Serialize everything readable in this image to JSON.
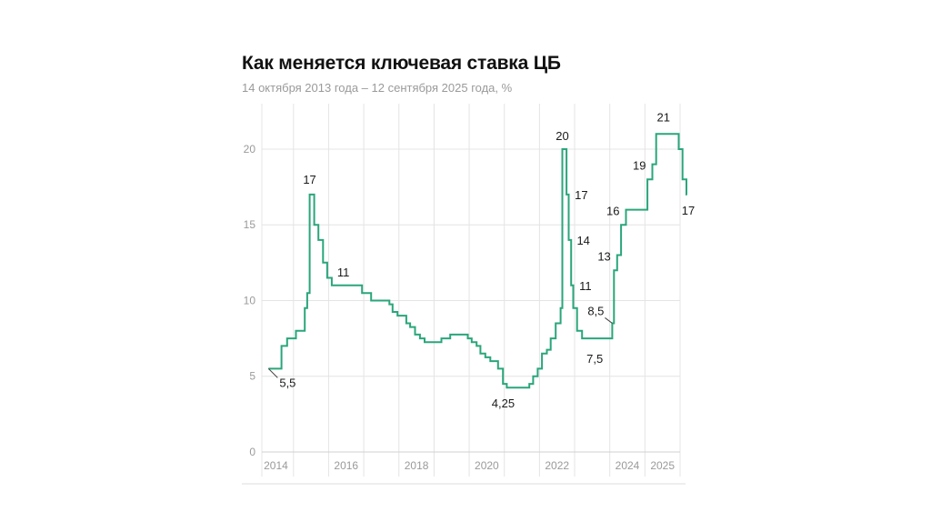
{
  "chart_data": {
    "type": "line",
    "title": "Как меняется ключевая ставка ЦБ",
    "subtitle": "14 октября 2013 года – 12 сентября 2025 года, %",
    "ylim": [
      0,
      23
    ],
    "yticks": [
      0,
      5,
      10,
      15,
      20
    ],
    "ytick_labels": [
      "0",
      "5",
      "10",
      "15",
      "20"
    ],
    "xlim": [
      2013.6,
      2025.5
    ],
    "xticks": [
      {
        "value": 2014,
        "label": "2014"
      },
      {
        "value": 2016,
        "label": "2016"
      },
      {
        "value": 2018,
        "label": "2018"
      },
      {
        "value": 2020,
        "label": "2020"
      },
      {
        "value": 2022,
        "label": "2022"
      },
      {
        "value": 2024,
        "label": "2024"
      },
      {
        "value": 2025,
        "label": "2025"
      }
    ],
    "gridlines": [
      2013.6,
      2014.5,
      2015.5,
      2016.5,
      2017.5,
      2018.5,
      2019.5,
      2020.5,
      2021.5,
      2022.5,
      2023.5,
      2024.5,
      2025.5
    ],
    "grid": true,
    "series": [
      {
        "color": "#2aa67a",
        "points": [
          [
            2013.79,
            5.5
          ],
          [
            2014.16,
            7.0
          ],
          [
            2014.32,
            7.5
          ],
          [
            2014.57,
            8.0
          ],
          [
            2014.82,
            9.5
          ],
          [
            2014.89,
            10.5
          ],
          [
            2014.96,
            17.0
          ],
          [
            2015.09,
            15.0
          ],
          [
            2015.21,
            14.0
          ],
          [
            2015.34,
            12.5
          ],
          [
            2015.46,
            11.5
          ],
          [
            2015.59,
            11.0
          ],
          [
            2016.45,
            10.5
          ],
          [
            2016.71,
            10.0
          ],
          [
            2017.23,
            9.75
          ],
          [
            2017.32,
            9.25
          ],
          [
            2017.46,
            9.0
          ],
          [
            2017.71,
            8.5
          ],
          [
            2017.82,
            8.25
          ],
          [
            2017.96,
            7.75
          ],
          [
            2018.1,
            7.5
          ],
          [
            2018.23,
            7.25
          ],
          [
            2018.71,
            7.5
          ],
          [
            2018.96,
            7.75
          ],
          [
            2019.46,
            7.5
          ],
          [
            2019.57,
            7.25
          ],
          [
            2019.71,
            7.0
          ],
          [
            2019.82,
            6.5
          ],
          [
            2019.96,
            6.25
          ],
          [
            2020.1,
            6.0
          ],
          [
            2020.32,
            5.5
          ],
          [
            2020.46,
            4.5
          ],
          [
            2020.57,
            4.25
          ],
          [
            2021.21,
            4.5
          ],
          [
            2021.32,
            5.0
          ],
          [
            2021.45,
            5.5
          ],
          [
            2021.57,
            6.5
          ],
          [
            2021.71,
            6.75
          ],
          [
            2021.82,
            7.5
          ],
          [
            2021.96,
            8.5
          ],
          [
            2022.1,
            9.5
          ],
          [
            2022.15,
            20.0
          ],
          [
            2022.27,
            17.0
          ],
          [
            2022.33,
            14.0
          ],
          [
            2022.4,
            11.0
          ],
          [
            2022.46,
            9.5
          ],
          [
            2022.57,
            8.0
          ],
          [
            2022.71,
            7.5
          ],
          [
            2023.57,
            8.5
          ],
          [
            2023.62,
            12.0
          ],
          [
            2023.71,
            13.0
          ],
          [
            2023.82,
            15.0
          ],
          [
            2023.96,
            16.0
          ],
          [
            2024.57,
            18.0
          ],
          [
            2024.71,
            19.0
          ],
          [
            2024.82,
            21.0
          ],
          [
            2025.46,
            20.0
          ],
          [
            2025.57,
            18.0
          ],
          [
            2025.68,
            17.0
          ],
          [
            2025.7,
            17.0
          ]
        ]
      }
    ],
    "annotations": [
      {
        "text": "5,5",
        "x": 2013.79,
        "y": 5.5
      },
      {
        "text": "17",
        "x": 2014.96,
        "y": 17.0
      },
      {
        "text": "11",
        "x": 2015.59,
        "y": 11.0
      },
      {
        "text": "4,25",
        "x": 2020.57,
        "y": 4.25
      },
      {
        "text": "20",
        "x": 2022.15,
        "y": 20.0
      },
      {
        "text": "17",
        "x": 2022.27,
        "y": 17.0
      },
      {
        "text": "14",
        "x": 2022.33,
        "y": 14.0
      },
      {
        "text": "11",
        "x": 2022.4,
        "y": 11.0
      },
      {
        "text": "7,5",
        "x": 2022.71,
        "y": 7.5
      },
      {
        "text": "8,5",
        "x": 2023.57,
        "y": 8.5
      },
      {
        "text": "13",
        "x": 2023.71,
        "y": 13.0
      },
      {
        "text": "16",
        "x": 2023.96,
        "y": 16.0
      },
      {
        "text": "19",
        "x": 2024.71,
        "y": 19.0
      },
      {
        "text": "21",
        "x": 2024.82,
        "y": 21.0
      },
      {
        "text": "17",
        "x": 2025.68,
        "y": 17.0
      }
    ]
  }
}
